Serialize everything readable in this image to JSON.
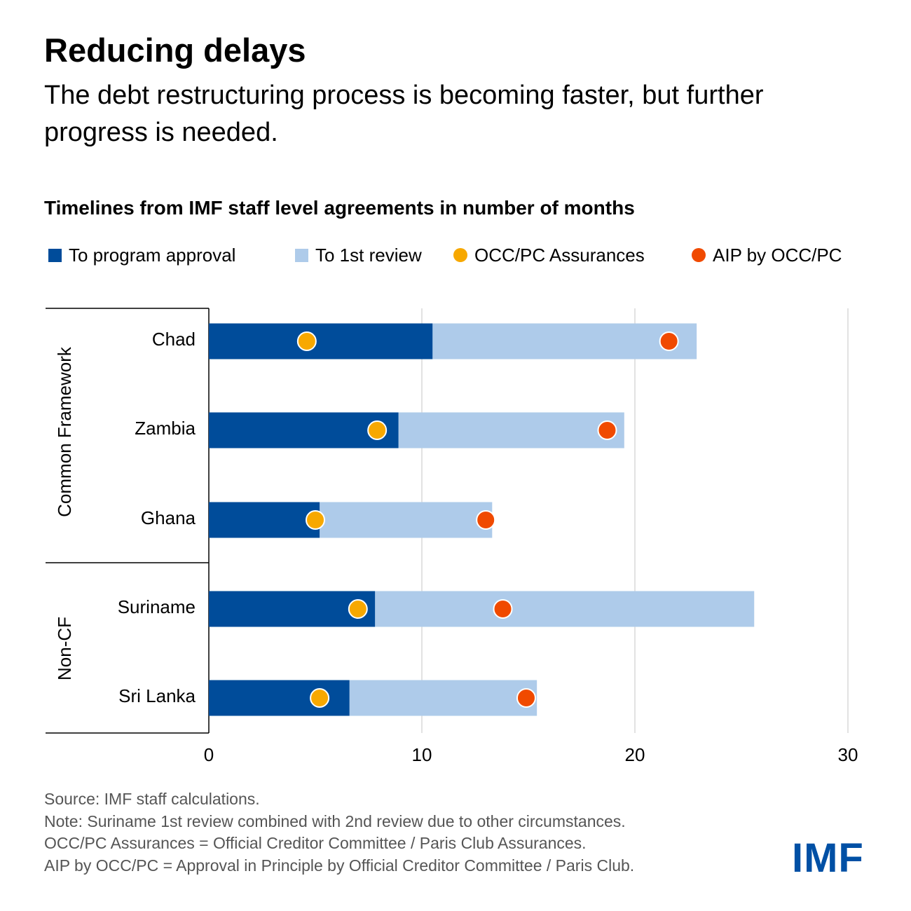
{
  "title": "Reducing delays",
  "subtitle": "The debt restructuring process is becoming faster, but further progress is needed.",
  "colors": {
    "program": "#004c9a",
    "review": "#aecbea",
    "occ": "#f7a800",
    "aip": "#f04a00",
    "grid": "#d9d9d9",
    "logo": "#0050a5"
  },
  "legend": {
    "program": "To program approval",
    "review": "To 1st review",
    "occ": "OCC/PC Assurances",
    "aip": "AIP by OCC/PC"
  },
  "chart_data": {
    "type": "bar",
    "orientation": "horizontal",
    "stacked": false,
    "title": "Timelines from IMF staff level agreements in number of months",
    "categories": [
      "Chad",
      "Zambia",
      "Ghana",
      "Suriname",
      "Sri Lanka"
    ],
    "groups": [
      {
        "name": "Common Framework",
        "categories": [
          "Chad",
          "Zambia",
          "Ghana"
        ]
      },
      {
        "name": "Non-CF",
        "categories": [
          "Suriname",
          "Sri Lanka"
        ]
      }
    ],
    "series": [
      {
        "name": "To program approval",
        "kind": "bar",
        "values": [
          10.5,
          8.9,
          5.2,
          7.8,
          6.6
        ]
      },
      {
        "name": "To 1st review",
        "kind": "bar",
        "values": [
          22.9,
          19.5,
          13.3,
          25.6,
          15.4
        ]
      },
      {
        "name": "OCC/PC Assurances",
        "kind": "marker",
        "values": [
          4.6,
          7.9,
          5.0,
          7.0,
          5.2
        ]
      },
      {
        "name": "AIP by OCC/PC",
        "kind": "marker",
        "values": [
          21.6,
          18.7,
          13.0,
          13.8,
          14.9
        ]
      }
    ],
    "xlim": [
      0,
      30
    ],
    "xticks": [
      0,
      10,
      20,
      30
    ],
    "xlabel": "",
    "ylabel": "",
    "grid": true,
    "legend_position": "top"
  },
  "footnotes": [
    "Source: IMF staff calculations.",
    "Note: Suriname 1st review combined with 2nd review due to other circumstances.",
    "OCC/PC Assurances = Official Creditor Committee / Paris Club Assurances.",
    "AIP by OCC/PC = Approval in Principle by Official Creditor Committee / Paris Club."
  ],
  "logo": "IMF"
}
